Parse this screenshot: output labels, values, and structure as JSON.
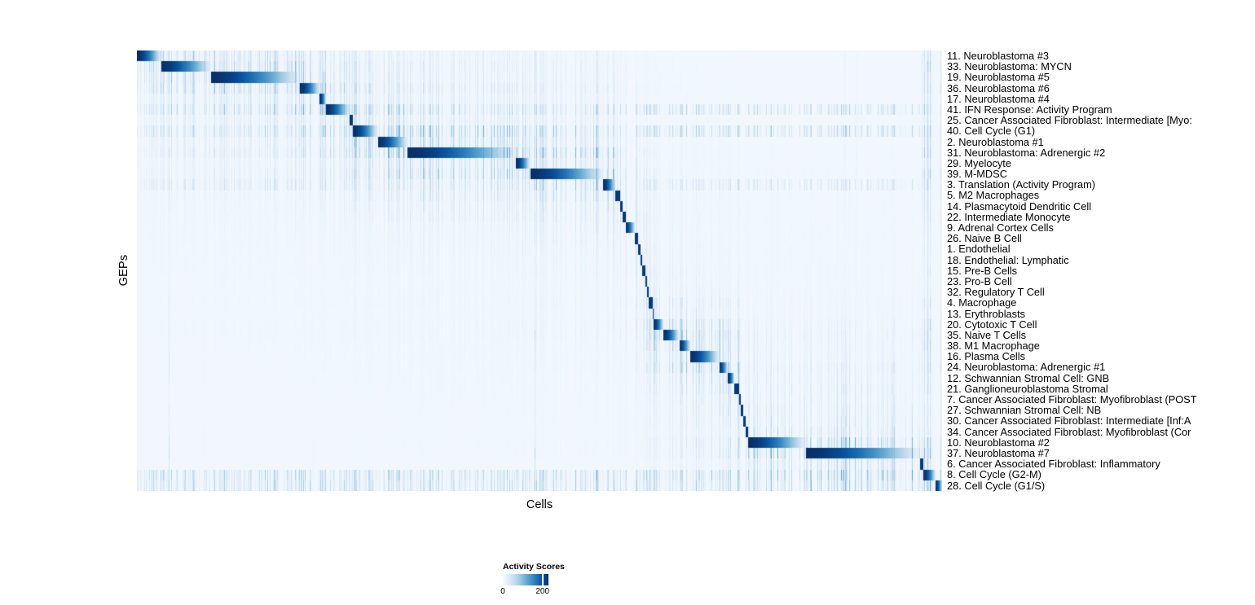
{
  "chart_data": {
    "type": "heatmap",
    "title": "",
    "xlabel": "Cells",
    "ylabel": "GEPs",
    "grid": false,
    "x_tick_labels": [],
    "value_range": [
      0,
      230
    ],
    "low_color": "#f7fbff",
    "high_color": "#08306b",
    "colormap_stops": [
      "#f7fbff",
      "#deebf7",
      "#c6dbef",
      "#9ecae1",
      "#6baed6",
      "#4292c6",
      "#2171b5",
      "#08519c",
      "#08306b"
    ],
    "legend": {
      "title": "Activity Scores",
      "position": "bottom-center",
      "min_value": 0,
      "min_label": "0",
      "tick_value": 200,
      "tick_label": "200"
    },
    "description": "Each row (GEP) shows a dark-blue activity block over its own cell cluster, ordered diagonally; cells within a block are sorted by decreasing activity; light blue vertical striping indicates background activity.",
    "rows": [
      {
        "label": "11. Neuroblastoma #3",
        "cluster_start": 0.0,
        "cluster_end": 0.0294,
        "noise_level": 0.7,
        "global": false
      },
      {
        "label": "33. Neuroblastoma: MYCN",
        "cluster_start": 0.0294,
        "cluster_end": 0.0911,
        "noise_level": 0.8,
        "global": false
      },
      {
        "label": "19. Neuroblastoma #5",
        "cluster_start": 0.0911,
        "cluster_end": 0.2024,
        "noise_level": 0.7,
        "global": false
      },
      {
        "label": "36. Neuroblastoma #6",
        "cluster_start": 0.2024,
        "cluster_end": 0.2267,
        "noise_level": 0.8,
        "global": false
      },
      {
        "label": "17. Neuroblastoma #4",
        "cluster_start": 0.2267,
        "cluster_end": 0.2348,
        "noise_level": 0.5,
        "global": false
      },
      {
        "label": "41. IFN Response: Activity Program",
        "cluster_start": 0.2348,
        "cluster_end": 0.2632,
        "noise_level": 1.0,
        "global": true
      },
      {
        "label": "25. Cancer Associated Fibroblast: Intermediate [Myo:",
        "cluster_start": 0.2632,
        "cluster_end": 0.2682,
        "noise_level": 0.5,
        "global": false
      },
      {
        "label": "40. Cell Cycle (G1)",
        "cluster_start": 0.2682,
        "cluster_end": 0.2986,
        "noise_level": 1.1,
        "global": true
      },
      {
        "label": "2. Neuroblastoma #1",
        "cluster_start": 0.2986,
        "cluster_end": 0.336,
        "noise_level": 0.7,
        "global": false
      },
      {
        "label": "31. Neuroblastoma: Adrenergic #2",
        "cluster_start": 0.336,
        "cluster_end": 0.4706,
        "noise_level": 1.0,
        "global": false
      },
      {
        "label": "29. Myelocyte",
        "cluster_start": 0.4706,
        "cluster_end": 0.4879,
        "noise_level": 0.6,
        "global": false
      },
      {
        "label": "39. M-MDSC",
        "cluster_start": 0.4879,
        "cluster_end": 0.5789,
        "noise_level": 0.9,
        "global": false
      },
      {
        "label": "3. Translation (Activity Program)",
        "cluster_start": 0.5789,
        "cluster_end": 0.5941,
        "noise_level": 0.7,
        "global": true
      },
      {
        "label": "5. M2 Macrophages",
        "cluster_start": 0.5941,
        "cluster_end": 0.6002,
        "noise_level": 0.6,
        "global": false
      },
      {
        "label": "14. Plasmacytoid Dendritic Cell",
        "cluster_start": 0.6002,
        "cluster_end": 0.6032,
        "noise_level": 0.5,
        "global": false
      },
      {
        "label": "22. Intermediate Monocyte",
        "cluster_start": 0.6032,
        "cluster_end": 0.6063,
        "noise_level": 0.5,
        "global": false
      },
      {
        "label": "9. Adrenal Cortex Cells",
        "cluster_start": 0.6063,
        "cluster_end": 0.6184,
        "noise_level": 0.4,
        "global": false
      },
      {
        "label": "26. Naive B Cell",
        "cluster_start": 0.6184,
        "cluster_end": 0.6215,
        "noise_level": 0.35,
        "global": false
      },
      {
        "label": "1. Endothelial",
        "cluster_start": 0.6215,
        "cluster_end": 0.6255,
        "noise_level": 0.35,
        "global": false
      },
      {
        "label": "18. Endothelial: Lymphatic",
        "cluster_start": 0.6255,
        "cluster_end": 0.6275,
        "noise_level": 0.3,
        "global": false
      },
      {
        "label": "15. Pre-B Cells",
        "cluster_start": 0.6275,
        "cluster_end": 0.6306,
        "noise_level": 0.35,
        "global": false
      },
      {
        "label": "23. Pro-B Cell",
        "cluster_start": 0.6306,
        "cluster_end": 0.6326,
        "noise_level": 0.3,
        "global": false
      },
      {
        "label": "32. Regulatory T Cell",
        "cluster_start": 0.6326,
        "cluster_end": 0.6356,
        "noise_level": 0.35,
        "global": false
      },
      {
        "label": "4. Macrophage",
        "cluster_start": 0.6356,
        "cluster_end": 0.6397,
        "noise_level": 0.5,
        "global": false
      },
      {
        "label": "13. Erythroblasts",
        "cluster_start": 0.6397,
        "cluster_end": 0.6417,
        "noise_level": 0.4,
        "global": false
      },
      {
        "label": "20. Cytotoxic T Cell",
        "cluster_start": 0.6417,
        "cluster_end": 0.6538,
        "noise_level": 0.8,
        "global": false
      },
      {
        "label": "35. Naive T Cells",
        "cluster_start": 0.6538,
        "cluster_end": 0.6731,
        "noise_level": 0.9,
        "global": false
      },
      {
        "label": "38. M1 Macrophage",
        "cluster_start": 0.6731,
        "cluster_end": 0.6872,
        "noise_level": 0.7,
        "global": false
      },
      {
        "label": "16. Plasma Cells",
        "cluster_start": 0.6872,
        "cluster_end": 0.7227,
        "noise_level": 0.6,
        "global": false
      },
      {
        "label": "24. Neuroblastoma: Adrenergic #1",
        "cluster_start": 0.7227,
        "cluster_end": 0.7338,
        "noise_level": 0.8,
        "global": false
      },
      {
        "label": "12. Schwannian Stromal Cell: GNB",
        "cluster_start": 0.7338,
        "cluster_end": 0.7419,
        "noise_level": 0.6,
        "global": false
      },
      {
        "label": "21. Ganglioneuroblastoma Stromal",
        "cluster_start": 0.7419,
        "cluster_end": 0.747,
        "noise_level": 0.6,
        "global": false
      },
      {
        "label": "7. Cancer Associated Fibroblast: Myofibroblast (POST",
        "cluster_start": 0.747,
        "cluster_end": 0.75,
        "noise_level": 0.5,
        "global": false
      },
      {
        "label": "27. Schwannian Stromal Cell: NB",
        "cluster_start": 0.75,
        "cluster_end": 0.7526,
        "noise_level": 0.5,
        "global": false
      },
      {
        "label": "30. Cancer Associated Fibroblast: Intermediate [Inf:A",
        "cluster_start": 0.7526,
        "cluster_end": 0.7551,
        "noise_level": 0.5,
        "global": false
      },
      {
        "label": "34. Cancer Associated Fibroblast: Myofibroblast (Cor",
        "cluster_start": 0.7551,
        "cluster_end": 0.7581,
        "noise_level": 0.5,
        "global": false
      },
      {
        "label": "10. Neuroblastoma #2",
        "cluster_start": 0.7581,
        "cluster_end": 0.83,
        "noise_level": 0.9,
        "global": false
      },
      {
        "label": "37. Neuroblastoma #7",
        "cluster_start": 0.83,
        "cluster_end": 0.9717,
        "noise_level": 1.0,
        "global": false
      },
      {
        "label": "6. Cancer Associated Fibroblast: Inflammatory",
        "cluster_start": 0.9717,
        "cluster_end": 0.9767,
        "noise_level": 0.6,
        "global": false
      },
      {
        "label": "8. Cell Cycle (G2-M)",
        "cluster_start": 0.9767,
        "cluster_end": 0.9919,
        "noise_level": 1.2,
        "global": true
      },
      {
        "label": "28. Cell Cycle (G1/S)",
        "cluster_start": 0.9919,
        "cluster_end": 1.0,
        "noise_level": 1.1,
        "global": true
      }
    ]
  }
}
